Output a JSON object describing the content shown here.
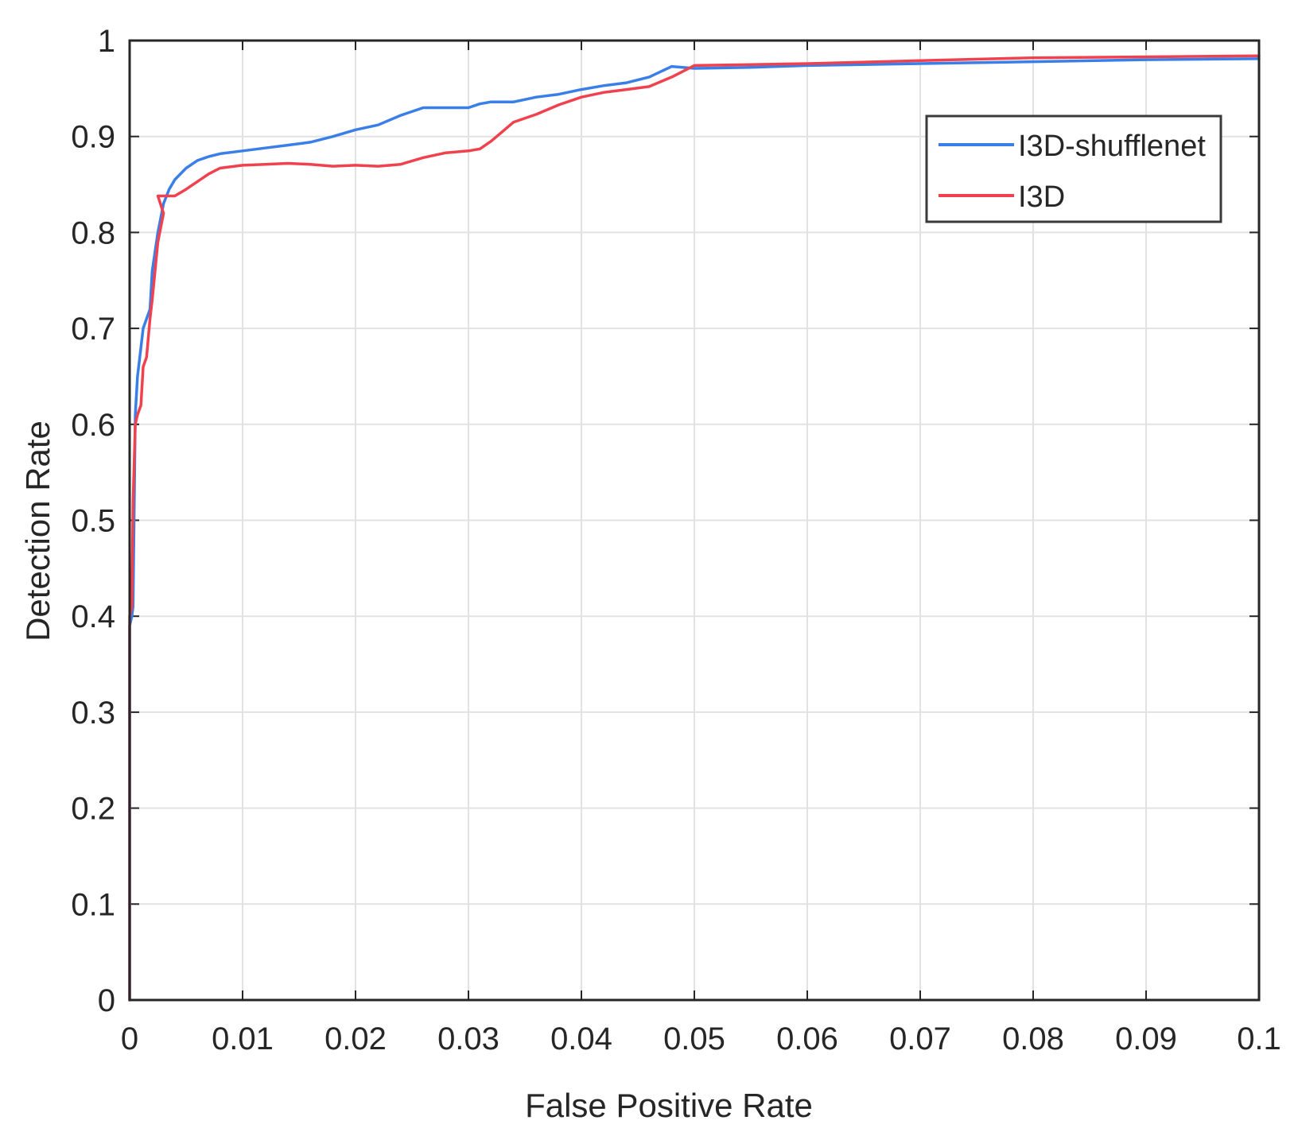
{
  "chart_data": {
    "type": "line",
    "title": "",
    "xlabel": "False Positive Rate",
    "ylabel": "Detection Rate",
    "xlim": [
      0,
      0.1
    ],
    "ylim": [
      0,
      1
    ],
    "xticks": [
      0,
      0.01,
      0.02,
      0.03,
      0.04,
      0.05,
      0.06,
      0.07,
      0.08,
      0.09,
      0.1
    ],
    "xtick_labels": [
      "0",
      "0.01",
      "0.02",
      "0.03",
      "0.04",
      "0.05",
      "0.06",
      "0.07",
      "0.08",
      "0.09",
      "0.1"
    ],
    "yticks": [
      0,
      0.1,
      0.2,
      0.3,
      0.4,
      0.5,
      0.6,
      0.7,
      0.8,
      0.9,
      1
    ],
    "ytick_labels": [
      "0",
      "0.1",
      "0.2",
      "0.3",
      "0.4",
      "0.5",
      "0.6",
      "0.7",
      "0.8",
      "0.9",
      "1"
    ],
    "grid": true,
    "legend_position": "top-right",
    "series": [
      {
        "name": "I3D-shufflenet",
        "color": "#3a7ee8",
        "x": [
          0,
          0,
          0.0002,
          0.0003,
          0.0005,
          0.0007,
          0.001,
          0.0012,
          0.0015,
          0.0018,
          0.002,
          0.0025,
          0.003,
          0.0035,
          0.004,
          0.005,
          0.006,
          0.007,
          0.008,
          0.01,
          0.012,
          0.014,
          0.016,
          0.018,
          0.02,
          0.022,
          0.024,
          0.026,
          0.028,
          0.03,
          0.031,
          0.032,
          0.034,
          0.036,
          0.038,
          0.04,
          0.042,
          0.044,
          0.046,
          0.048,
          0.05,
          0.055,
          0.06,
          0.07,
          0.08,
          0.09,
          0.1
        ],
        "y": [
          0,
          0.39,
          0.4,
          0.41,
          0.61,
          0.65,
          0.68,
          0.7,
          0.71,
          0.72,
          0.76,
          0.8,
          0.83,
          0.845,
          0.855,
          0.867,
          0.875,
          0.879,
          0.882,
          0.885,
          0.888,
          0.891,
          0.894,
          0.9,
          0.907,
          0.912,
          0.922,
          0.93,
          0.93,
          0.93,
          0.934,
          0.936,
          0.936,
          0.941,
          0.944,
          0.949,
          0.953,
          0.956,
          0.962,
          0.973,
          0.971,
          0.972,
          0.974,
          0.976,
          0.978,
          0.98,
          0.981
        ]
      },
      {
        "name": "I3D",
        "color": "#f0424e",
        "x": [
          0,
          0,
          0.0002,
          0.0003,
          0.0005,
          0.0007,
          0.001,
          0.0012,
          0.0015,
          0.0018,
          0.002,
          0.0025,
          0.003,
          0.0025,
          0.004,
          0.005,
          0.006,
          0.007,
          0.008,
          0.01,
          0.012,
          0.014,
          0.016,
          0.018,
          0.02,
          0.022,
          0.024,
          0.026,
          0.028,
          0.03,
          0.031,
          0.032,
          0.034,
          0.036,
          0.038,
          0.04,
          0.042,
          0.044,
          0.046,
          0.048,
          0.05,
          0.055,
          0.06,
          0.07,
          0.08,
          0.09,
          0.1
        ],
        "y": [
          0,
          0.4,
          0.41,
          0.52,
          0.6,
          0.61,
          0.62,
          0.66,
          0.67,
          0.71,
          0.73,
          0.79,
          0.82,
          0.838,
          0.838,
          0.845,
          0.853,
          0.861,
          0.867,
          0.87,
          0.871,
          0.872,
          0.871,
          0.869,
          0.87,
          0.869,
          0.871,
          0.878,
          0.883,
          0.885,
          0.887,
          0.895,
          0.915,
          0.923,
          0.933,
          0.941,
          0.946,
          0.949,
          0.952,
          0.962,
          0.974,
          0.975,
          0.976,
          0.979,
          0.982,
          0.983,
          0.984
        ]
      }
    ]
  }
}
